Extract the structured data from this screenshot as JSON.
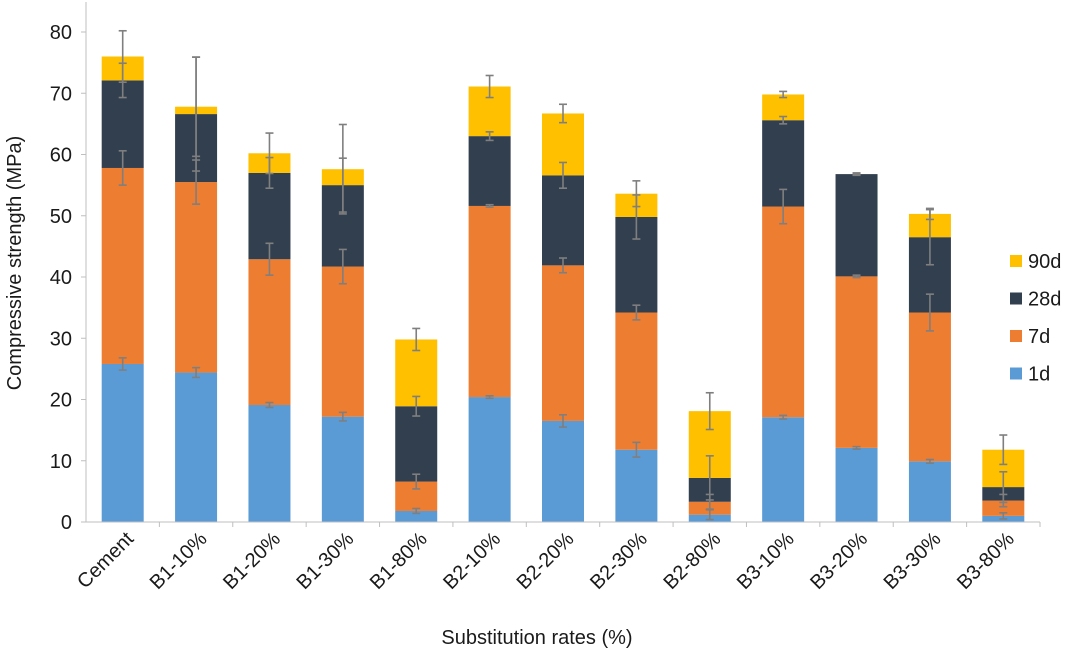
{
  "chart_data": {
    "type": "bar",
    "stacked": true,
    "title": "",
    "xlabel": "Substitution rates (%)",
    "ylabel": "Compressive strength (MPa)",
    "ylim": [
      0,
      80
    ],
    "yticks": [
      0,
      10,
      20,
      30,
      40,
      50,
      60,
      70,
      80
    ],
    "grid": false,
    "legend_position": "right",
    "categories": [
      "Cement",
      "B1-10%",
      "B1-20%",
      "B1-30%",
      "B1-80%",
      "B2-10%",
      "B2-20%",
      "B2-30%",
      "B2-80%",
      "B3-10%",
      "B3-20%",
      "B3-30%",
      "B3-80%"
    ],
    "series": [
      {
        "name": "1d",
        "color": "#5b9bd5",
        "cumulative_values": [
          25.8,
          24.4,
          19.1,
          17.2,
          1.8,
          20.4,
          16.5,
          11.8,
          1.2,
          17.1,
          12.1,
          9.9,
          1.0
        ],
        "error": [
          1.0,
          0.8,
          0.4,
          0.7,
          0.4,
          0.2,
          1.0,
          1.2,
          0.8,
          0.3,
          0.2,
          0.3,
          0.5
        ]
      },
      {
        "name": "7d",
        "color": "#ed7d31",
        "cumulative_values": [
          57.8,
          55.5,
          42.9,
          41.7,
          6.6,
          51.6,
          41.9,
          34.2,
          3.3,
          51.5,
          40.1,
          34.2,
          3.5
        ],
        "error": [
          2.8,
          3.6,
          2.6,
          2.8,
          1.2,
          0.2,
          1.2,
          1.2,
          1.2,
          2.8,
          0.2,
          3.0,
          1.0
        ]
      },
      {
        "name": "28d",
        "color": "#323f4f",
        "cumulative_values": [
          72.1,
          66.6,
          57.0,
          55.0,
          18.9,
          63.0,
          56.6,
          49.8,
          7.2,
          65.6,
          56.8,
          46.5,
          5.7
        ],
        "error": [
          2.8,
          9.3,
          2.5,
          4.4,
          1.6,
          0.7,
          2.1,
          3.6,
          3.6,
          0.6,
          0.2,
          4.5,
          2.5
        ]
      },
      {
        "name": "90d",
        "color": "#ffc000",
        "cumulative_values": [
          76.0,
          67.8,
          60.2,
          57.6,
          29.8,
          71.1,
          66.7,
          53.6,
          18.1,
          69.8,
          56.8,
          50.3,
          11.8
        ],
        "error": [
          4.2,
          8.1,
          3.3,
          7.3,
          1.8,
          1.8,
          1.5,
          2.1,
          3.0,
          0.5,
          0.0,
          0.9,
          2.4
        ]
      }
    ]
  }
}
